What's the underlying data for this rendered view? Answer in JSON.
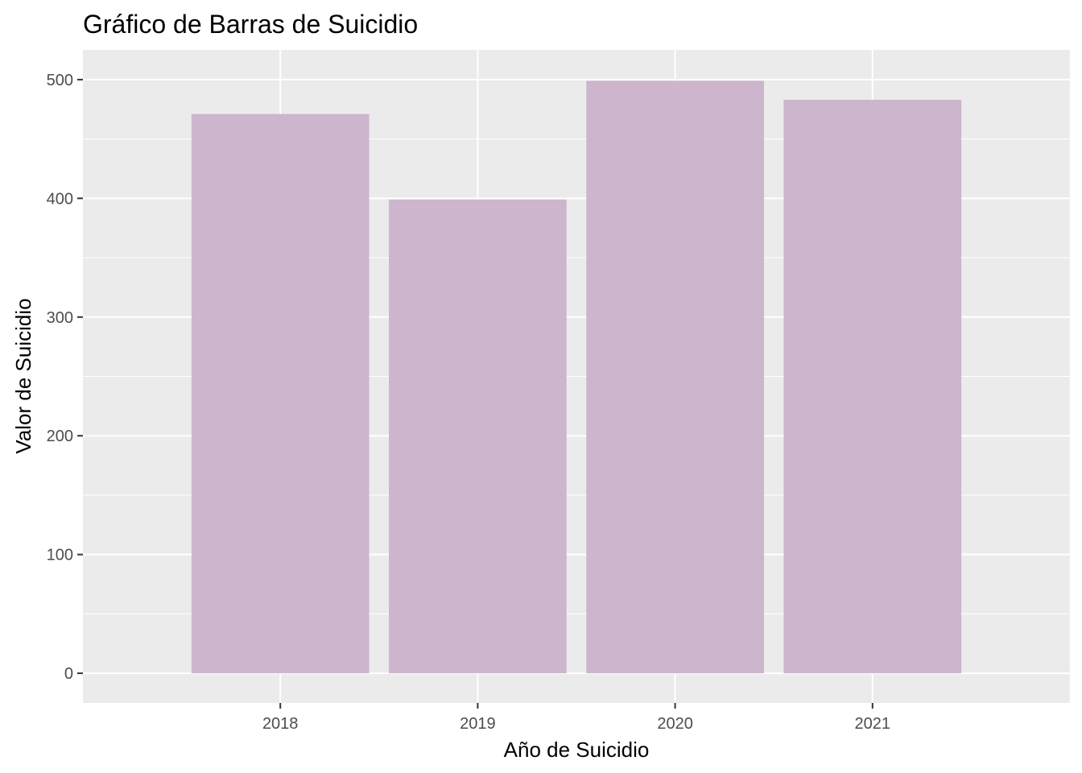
{
  "chart_data": {
    "type": "bar",
    "title": "Gráfico de Barras de Suicidio",
    "xlabel": "Año de Suicidio",
    "ylabel": "Valor de Suicidio",
    "categories": [
      "2018",
      "2019",
      "2020",
      "2021"
    ],
    "values": [
      471,
      399,
      499,
      483
    ],
    "ylim": [
      -25,
      525
    ],
    "yticks": [
      0,
      100,
      200,
      300,
      400,
      500
    ],
    "grid": true,
    "colors": {
      "bar": "#cdb5cd",
      "panel": "#ebebeb",
      "grid": "#ffffff"
    }
  }
}
